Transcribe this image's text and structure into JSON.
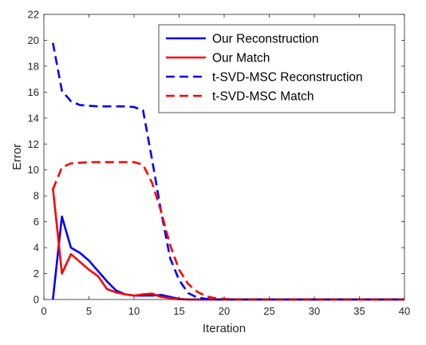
{
  "chart_data": {
    "type": "line",
    "title": "",
    "xlabel": "Iteration",
    "ylabel": "Error",
    "xlim": [
      0,
      40
    ],
    "ylim": [
      0,
      22
    ],
    "xticks": [
      0,
      5,
      10,
      15,
      20,
      25,
      30,
      35,
      40
    ],
    "yticks": [
      0,
      2,
      4,
      6,
      8,
      10,
      12,
      14,
      16,
      18,
      20,
      22
    ],
    "grid": false,
    "legend_position": "top-right",
    "x": [
      1,
      2,
      3,
      4,
      5,
      6,
      7,
      8,
      9,
      10,
      11,
      12,
      13,
      14,
      15,
      16,
      17,
      18,
      19,
      20,
      21,
      22,
      23,
      24,
      25,
      26,
      27,
      28,
      29,
      30,
      31,
      32,
      33,
      34,
      35,
      36,
      37,
      38,
      39,
      40
    ],
    "series": [
      {
        "name": "Our Reconstruction",
        "color": "#0000ff",
        "dash": "solid",
        "values": [
          0,
          6.4,
          4.0,
          3.6,
          3.0,
          2.2,
          1.4,
          0.7,
          0.4,
          0.3,
          0.3,
          0.3,
          0.35,
          0.2,
          0.05,
          0,
          0,
          0,
          0,
          0,
          0,
          0,
          0,
          0,
          0,
          0,
          0,
          0,
          0,
          0,
          0,
          0,
          0,
          0,
          0,
          0,
          0,
          0,
          0,
          0
        ]
      },
      {
        "name": "Our Match",
        "color": "#ff0000",
        "dash": "solid",
        "values": [
          8.6,
          2.0,
          3.5,
          2.9,
          2.3,
          1.8,
          0.8,
          0.55,
          0.4,
          0.3,
          0.4,
          0.45,
          0.2,
          0.1,
          0.02,
          0,
          0,
          0,
          0,
          0,
          0,
          0,
          0,
          0,
          0,
          0,
          0,
          0,
          0,
          0,
          0,
          0,
          0,
          0,
          0,
          0,
          0,
          0,
          0,
          0
        ]
      },
      {
        "name": "t-SVD-MSC Reconstruction",
        "color": "#0000ff",
        "dash": "dashed",
        "values": [
          19.8,
          16.1,
          15.3,
          15.0,
          14.95,
          14.9,
          14.9,
          14.9,
          14.9,
          14.85,
          14.6,
          10.8,
          6.8,
          3.2,
          1.5,
          0.5,
          0.15,
          0.05,
          0,
          0,
          0,
          0,
          0,
          0,
          0,
          0,
          0,
          0,
          0,
          0,
          0,
          0,
          0,
          0,
          0,
          0,
          0,
          0,
          0,
          0
        ]
      },
      {
        "name": "t-SVD-MSC Match",
        "color": "#ff0000",
        "dash": "dashed",
        "values": [
          8.5,
          10.2,
          10.5,
          10.55,
          10.6,
          10.6,
          10.6,
          10.6,
          10.6,
          10.6,
          10.4,
          9.0,
          6.8,
          4.2,
          2.3,
          1.2,
          0.6,
          0.25,
          0.1,
          0.05,
          0.02,
          0,
          0,
          0,
          0,
          0,
          0,
          0,
          0,
          0,
          0,
          0,
          0,
          0,
          0,
          0,
          0,
          0,
          0,
          0
        ]
      }
    ]
  }
}
